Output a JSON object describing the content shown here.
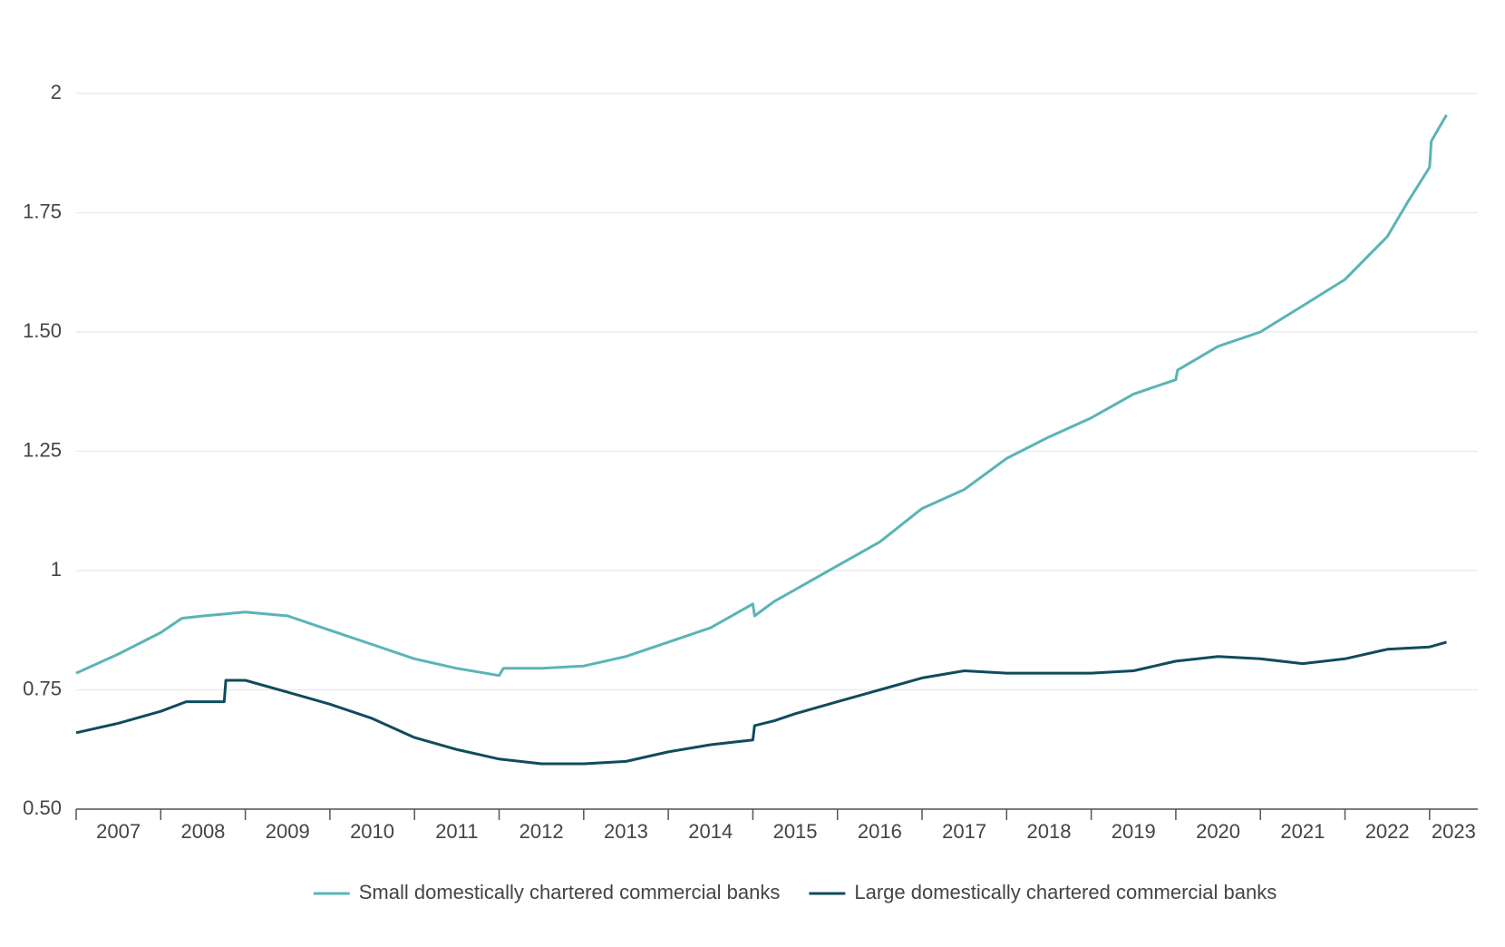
{
  "chart_data": {
    "type": "line",
    "xlim": [
      2007,
      2023.57
    ],
    "xticks": [
      2007,
      2008,
      2009,
      2010,
      2011,
      2012,
      2013,
      2014,
      2015,
      2016,
      2017,
      2018,
      2019,
      2020,
      2021,
      2022,
      2023
    ],
    "ylim": [
      0.5,
      2
    ],
    "yticks": [
      {
        "value": 0.5,
        "label": "0.50"
      },
      0.75,
      1,
      1.25,
      {
        "value": 1.5,
        "label": "1.50"
      },
      1.75,
      2
    ],
    "grid": true,
    "legend": "bottom",
    "series": [
      {
        "name": "Small domestically chartered commercial banks",
        "color": "#5ab4b6",
        "x": [
          2007,
          2007.5,
          2008,
          2008.25,
          2008.5,
          2009,
          2009.5,
          2010,
          2010.5,
          2011,
          2011.5,
          2012,
          2012.05,
          2012.5,
          2013,
          2013.5,
          2014,
          2014.5,
          2015,
          2015.02,
          2015.25,
          2015.5,
          2016,
          2016.5,
          2017,
          2017.5,
          2018,
          2018.5,
          2019,
          2019.5,
          2020,
          2020.02,
          2020.5,
          2021,
          2021.5,
          2022,
          2022.5,
          2022.75,
          2023,
          2023.02,
          2023.2
        ],
        "values": [
          0.785,
          0.825,
          0.87,
          0.9,
          0.905,
          0.913,
          0.905,
          0.875,
          0.845,
          0.815,
          0.795,
          0.78,
          0.795,
          0.795,
          0.8,
          0.82,
          0.85,
          0.88,
          0.93,
          0.905,
          0.935,
          0.96,
          1.01,
          1.06,
          1.13,
          1.17,
          1.235,
          1.28,
          1.32,
          1.37,
          1.4,
          1.42,
          1.47,
          1.5,
          1.555,
          1.61,
          1.7,
          1.775,
          1.845,
          1.9,
          1.955
        ]
      },
      {
        "name": "Large domestically chartered commercial banks",
        "color": "#0f4c5c",
        "x": [
          2007,
          2007.5,
          2008,
          2008.3,
          2008.75,
          2008.77,
          2009,
          2009.5,
          2010,
          2010.5,
          2011,
          2011.5,
          2012,
          2012.5,
          2013,
          2013.5,
          2014,
          2014.5,
          2015,
          2015.02,
          2015.25,
          2015.5,
          2016,
          2016.5,
          2017,
          2017.5,
          2018,
          2018.5,
          2019,
          2019.5,
          2020,
          2020.5,
          2021,
          2021.5,
          2022,
          2022.5,
          2023,
          2023.2
        ],
        "values": [
          0.66,
          0.68,
          0.705,
          0.725,
          0.725,
          0.77,
          0.77,
          0.745,
          0.72,
          0.69,
          0.65,
          0.625,
          0.605,
          0.595,
          0.595,
          0.6,
          0.62,
          0.635,
          0.645,
          0.675,
          0.685,
          0.7,
          0.725,
          0.75,
          0.775,
          0.79,
          0.785,
          0.785,
          0.785,
          0.79,
          0.81,
          0.82,
          0.815,
          0.805,
          0.815,
          0.835,
          0.84,
          0.85
        ]
      }
    ]
  }
}
